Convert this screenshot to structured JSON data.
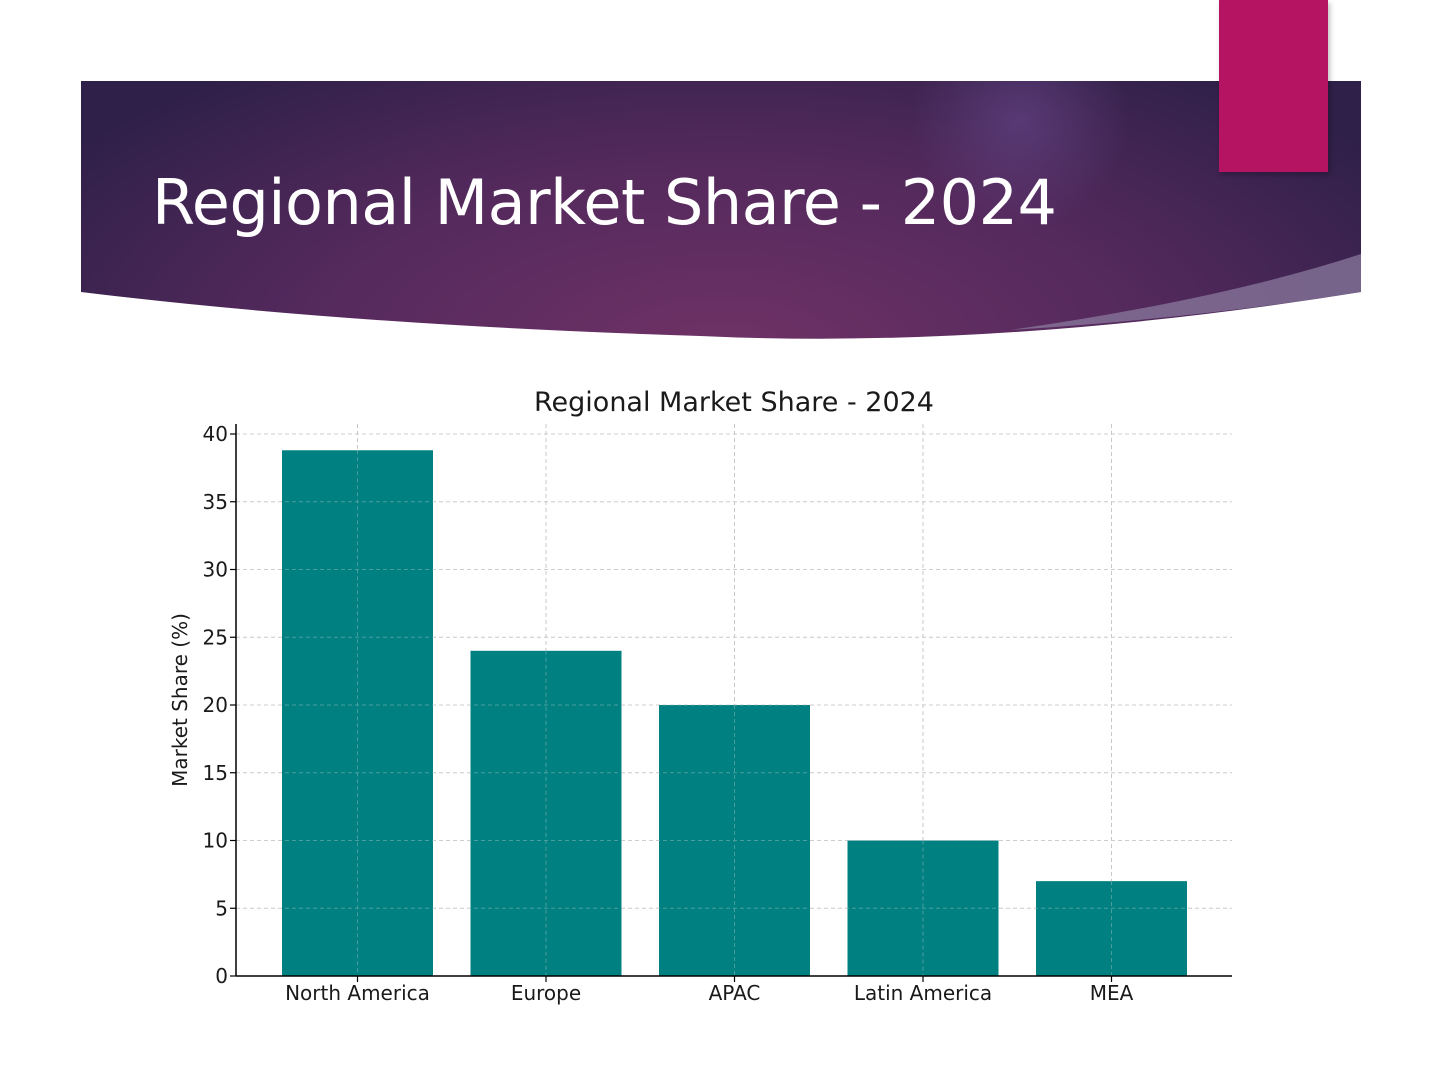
{
  "slide": {
    "title": "Regional Market Share - 2024",
    "colors": {
      "banner_dark": "#31204a",
      "banner_mid": "#6b3163",
      "accent": "#b41461",
      "bar": "#008080"
    }
  },
  "chart_data": {
    "type": "bar",
    "title": "Regional Market Share - 2024",
    "xlabel": "",
    "ylabel": "Market Share (%)",
    "categories": [
      "North America",
      "Europe",
      "APAC",
      "Latin America",
      "MEA"
    ],
    "values": [
      38.8,
      24,
      20,
      10,
      7
    ],
    "ylim": [
      0,
      40
    ],
    "yticks": [
      0,
      5,
      10,
      15,
      20,
      25,
      30,
      35,
      40
    ],
    "grid": true,
    "bar_color": "#008080"
  }
}
